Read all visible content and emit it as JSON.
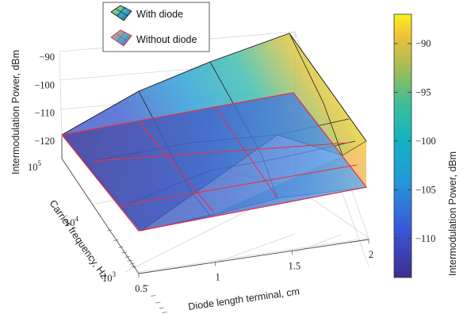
{
  "chart_data": {
    "type": "surface3d",
    "title": "",
    "xlabel": "Diode length terminal, cm",
    "ylabel": "Carrier frequency, Hz",
    "zlabel": "Intermodulation Power, dBm",
    "colorbar_label": "Intermodulation Power, dBm",
    "x": [
      0.5,
      1,
      1.5,
      2
    ],
    "x_tick_labels": [
      "0.5",
      "1",
      "1.5",
      "2"
    ],
    "y_tick_labels": [
      "10",
      "10",
      "10"
    ],
    "y_tick_exponents": [
      "3",
      "4",
      "5"
    ],
    "y_log_scale": true,
    "y_range_exp": [
      3,
      5
    ],
    "z_ticks": [
      -120,
      -110,
      -100,
      -90
    ],
    "z_tick_labels": [
      "−120",
      "−110",
      "−100",
      "−90"
    ],
    "colorbar_ticks": [
      -110,
      -105,
      -100,
      -95,
      -90
    ],
    "colorbar_tick_labels": [
      "−110",
      "−105",
      "−100",
      "−95",
      "−90"
    ],
    "colorbar_range": [
      -114,
      -87
    ],
    "colormap": "parula",
    "legend_placement": "top",
    "series": [
      {
        "name": "With diode",
        "edge_color": "#000000",
        "corner_values": {
          "x0.5_f1e5": -120,
          "x2_f1e5": -87,
          "x0.5_f1e3": -112,
          "x2_f1e3": -113
        }
      },
      {
        "name": "Without diode",
        "edge_color": "#e8304a",
        "corner_values": {
          "x0.5_f1e5": -120,
          "x2_f1e5": -101,
          "x0.5_f1e3": -112,
          "x2_f1e3": -113
        }
      }
    ]
  }
}
